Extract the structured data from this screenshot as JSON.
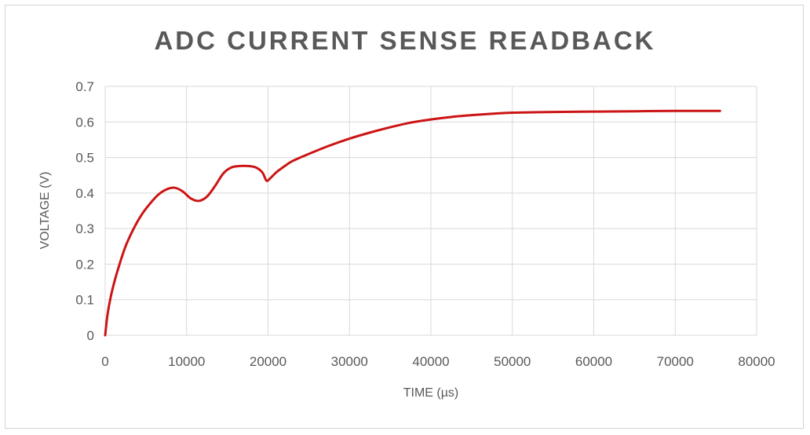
{
  "chart_data": {
    "type": "line",
    "title": "ADC CURRENT SENSE READBACK",
    "xlabel": "TIME (µs)",
    "ylabel": "VOLTAGE (V)",
    "xlim": [
      0,
      80000
    ],
    "ylim": [
      0,
      0.7
    ],
    "x_ticks": [
      "0",
      "10000",
      "20000",
      "30000",
      "40000",
      "50000",
      "60000",
      "70000",
      "80000"
    ],
    "y_ticks": [
      "0",
      "0.1",
      "0.2",
      "0.3",
      "0.4",
      "0.5",
      "0.6",
      "0.7"
    ],
    "grid": true,
    "legend": "none",
    "series": [
      {
        "color": "#cc1414",
        "x": [
          0,
          300,
          800,
          1500,
          2500,
          3500,
          4500,
          5500,
          6500,
          7500,
          8500,
          9500,
          10500,
          11500,
          12500,
          13500,
          14500,
          15500,
          16500,
          17500,
          18500,
          19300,
          19800,
          20200,
          21000,
          22000,
          23000,
          25000,
          27500,
          30000,
          32500,
          35000,
          37500,
          40000,
          42500,
          45000,
          47500,
          50000,
          55000,
          60000,
          65000,
          70000,
          75500
        ],
        "y": [
          0,
          0.06,
          0.12,
          0.18,
          0.25,
          0.3,
          0.34,
          0.37,
          0.395,
          0.41,
          0.415,
          0.405,
          0.385,
          0.378,
          0.39,
          0.42,
          0.455,
          0.472,
          0.476,
          0.476,
          0.472,
          0.458,
          0.435,
          0.44,
          0.458,
          0.475,
          0.49,
          0.51,
          0.533,
          0.553,
          0.57,
          0.585,
          0.598,
          0.607,
          0.614,
          0.619,
          0.623,
          0.626,
          0.628,
          0.629,
          0.63,
          0.631,
          0.631
        ]
      }
    ]
  }
}
